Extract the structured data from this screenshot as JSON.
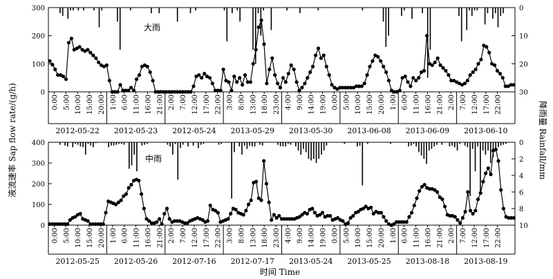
{
  "chart_data": [
    {
      "type": "line",
      "panel_label": "大雨",
      "ylabel_left": "液流速率 Sap flow rate/(g/h)",
      "ylabel_right": "降雨量 Rainfall/mm",
      "ylim_left": [
        0,
        300
      ],
      "yticks_left": [
        0,
        100,
        200,
        300
      ],
      "ylim_right": [
        0,
        30
      ],
      "yticks_right": [
        0,
        10,
        20,
        30
      ],
      "right_axis_inverted": true,
      "rain_series": "bars hanging from top",
      "tick_labels": [
        "0:00",
        "5:00",
        "10:00",
        "15:00",
        "20:00",
        "1:00",
        "6:00",
        "11:00",
        "16:00",
        "21:00",
        "2:00",
        "7:00",
        "12:00",
        "17:00",
        "22:00",
        "3:00",
        "8:00",
        "13:00",
        "18:00",
        "23:00",
        "4:00",
        "9:00",
        "14:00",
        "19:00",
        "0:00",
        "5:00",
        "10:00",
        "15:00",
        "20:00",
        "1:00",
        "6:00",
        "11:00",
        "16:00",
        "21:00",
        "2:00",
        "7:00",
        "12:00",
        "17:00",
        "22:00"
      ],
      "dates": [
        "2012-05-22",
        "2012-05-23",
        "2012-05-24",
        "2013-05-29",
        "2013-05-30",
        "2013-06-08",
        "2013-06-09",
        "2013-06-10"
      ],
      "sap_flow": [
        110,
        97,
        80,
        60,
        60,
        55,
        45,
        175,
        190,
        150,
        155,
        160,
        150,
        145,
        150,
        140,
        130,
        120,
        105,
        95,
        90,
        95,
        40,
        0,
        0,
        0,
        25,
        5,
        5,
        5,
        15,
        5,
        45,
        60,
        90,
        95,
        90,
        70,
        40,
        0,
        0,
        0,
        0,
        0,
        0,
        0,
        0,
        0,
        0,
        0,
        0,
        0,
        0,
        20,
        55,
        60,
        50,
        65,
        55,
        50,
        30,
        5,
        5,
        5,
        80,
        40,
        35,
        5,
        55,
        35,
        50,
        25,
        60,
        35,
        35,
        100,
        150,
        230,
        255,
        170,
        30,
        80,
        120,
        60,
        30,
        15,
        50,
        35,
        65,
        95,
        80,
        35,
        5,
        15,
        30,
        50,
        70,
        90,
        130,
        155,
        120,
        130,
        90,
        60,
        25,
        15,
        10,
        15,
        15,
        15,
        15,
        15,
        15,
        20,
        20,
        20,
        30,
        60,
        90,
        110,
        130,
        125,
        110,
        90,
        70,
        40,
        5,
        0,
        0,
        5,
        50,
        55,
        35,
        20,
        50,
        40,
        50,
        70,
        75,
        200,
        100,
        95,
        105,
        120,
        95,
        85,
        75,
        60,
        40,
        40,
        35,
        30,
        25,
        30,
        40,
        60,
        70,
        80,
        100,
        115,
        165,
        160,
        140,
        100,
        95,
        75,
        65,
        50,
        20,
        20,
        25,
        25
      ],
      "rainfall": [
        0,
        0,
        0,
        0,
        2,
        3,
        0,
        4,
        1,
        1,
        0,
        1,
        0,
        1,
        0,
        0,
        0,
        1,
        0,
        7,
        1,
        0,
        0,
        0,
        0,
        0,
        5,
        15,
        0,
        0,
        0,
        1,
        0,
        0,
        0,
        0,
        0,
        0,
        0,
        2,
        0,
        0,
        2,
        0,
        0,
        0,
        0,
        0,
        0,
        5,
        0,
        0,
        0,
        0,
        2,
        0,
        1,
        0,
        0,
        0,
        0,
        0,
        0,
        0,
        0,
        0,
        0,
        1,
        12,
        0,
        2,
        0,
        1,
        5,
        0,
        0,
        0,
        0,
        15,
        20,
        2,
        10,
        1,
        0,
        0,
        8,
        0,
        0,
        0,
        0,
        0,
        1,
        0,
        0,
        0,
        0,
        2,
        0,
        0,
        0,
        0,
        0,
        0,
        1,
        0,
        0,
        0,
        0,
        0,
        0,
        0,
        0,
        0,
        0,
        0,
        0,
        0,
        0,
        0,
        0,
        1,
        0,
        0,
        0,
        0,
        0,
        0,
        0,
        5,
        14,
        10,
        0,
        0,
        0,
        0,
        3,
        1,
        0,
        0,
        4,
        0,
        0,
        0,
        2,
        0,
        25,
        15,
        0,
        0,
        0,
        0,
        0,
        0,
        0,
        0,
        0,
        0,
        3,
        12,
        0,
        8,
        1,
        3,
        1,
        1,
        0,
        0,
        6,
        2,
        0,
        4,
        2,
        7,
        3,
        2,
        0,
        0,
        0,
        0
      ]
    },
    {
      "type": "line",
      "panel_label": "中雨",
      "ylim_left": [
        0,
        400
      ],
      "yticks_left": [
        0,
        100,
        200,
        300,
        400
      ],
      "ylim_right": [
        0,
        10
      ],
      "yticks_right": [
        0,
        2,
        4,
        6,
        8,
        10
      ],
      "right_axis_inverted": true,
      "rain_series": "bars hanging from top",
      "xlabel": "时间 Time",
      "tick_labels": [
        "0:00",
        "5:00",
        "10:00",
        "15:00",
        "20:00",
        "1:00",
        "6:00",
        "11:00",
        "16:00",
        "21:00",
        "2:00",
        "7:00",
        "12:00",
        "17:00",
        "22:00",
        "3:00",
        "8:00",
        "13:00",
        "18:00",
        "23:00",
        "4:00",
        "9:00",
        "14:00",
        "19:00",
        "0:00",
        "5:00",
        "10:00",
        "15:00",
        "20:00",
        "1:00",
        "6:00",
        "11:00",
        "16:00",
        "21:00",
        "2:00",
        "7:00",
        "12:00",
        "17:00",
        "22:00"
      ],
      "dates": [
        "2012-05-25",
        "2012-05-26",
        "2012-07-16",
        "2012-07-17",
        "2013-05-24",
        "2013-05-25",
        "2013-08-18",
        "2013-08-19"
      ],
      "sap_flow": [
        5,
        5,
        5,
        5,
        5,
        5,
        5,
        5,
        25,
        35,
        40,
        50,
        55,
        30,
        25,
        20,
        5,
        5,
        5,
        5,
        5,
        5,
        60,
        115,
        110,
        105,
        100,
        110,
        120,
        140,
        150,
        180,
        195,
        215,
        220,
        215,
        150,
        80,
        30,
        20,
        10,
        10,
        15,
        30,
        5,
        55,
        80,
        30,
        15,
        20,
        20,
        20,
        15,
        10,
        10,
        20,
        25,
        30,
        35,
        30,
        25,
        15,
        20,
        95,
        75,
        70,
        60,
        15,
        20,
        25,
        30,
        55,
        80,
        75,
        60,
        55,
        50,
        70,
        100,
        120,
        205,
        210,
        130,
        120,
        310,
        200,
        110,
        25,
        50,
        35,
        45,
        30,
        30,
        30,
        30,
        30,
        30,
        35,
        40,
        50,
        60,
        55,
        75,
        80,
        60,
        45,
        50,
        60,
        40,
        45,
        45,
        25,
        30,
        35,
        25,
        20,
        5,
        10,
        35,
        45,
        60,
        65,
        75,
        80,
        90,
        80,
        85,
        55,
        65,
        60,
        60,
        40,
        20,
        5,
        0,
        5,
        15,
        15,
        15,
        15,
        15,
        40,
        60,
        95,
        130,
        165,
        185,
        195,
        180,
        175,
        175,
        170,
        160,
        135,
        125,
        90,
        50,
        45,
        45,
        40,
        25,
        10,
        35,
        65,
        160,
        70,
        55,
        70,
        125,
        155,
        210,
        250,
        275,
        245,
        360,
        365,
        310,
        170,
        80,
        40,
        35,
        35,
        35
      ],
      "rainfall": [
        0,
        0,
        0,
        0,
        0.3,
        0,
        0.4,
        0.5,
        0,
        0.6,
        0.2,
        0.3,
        0.5,
        0.6,
        1.5,
        0.2,
        0.4,
        0.6,
        0.1,
        0,
        0,
        0,
        0,
        0.6,
        0.4,
        0.4,
        0.3,
        0.2,
        0.2,
        0.3,
        0,
        3.2,
        2.8,
        1.5,
        3.5,
        0,
        0.4,
        0.3,
        0.2,
        0,
        0,
        0,
        0,
        0,
        0,
        0,
        0.3,
        0.5,
        1.5,
        0.2,
        4.5,
        0.7,
        0.3,
        0,
        0.5,
        0,
        0.4,
        0,
        0.7,
        0.3,
        0.2,
        0,
        0,
        0,
        0,
        0,
        0.3,
        0.2,
        0,
        0,
        0,
        6.8,
        1.2,
        0,
        0.5,
        1.5,
        0.4,
        0.8,
        0.4,
        0.5,
        0.5,
        0,
        0.3,
        0.4,
        0,
        0,
        0,
        0,
        0,
        0.3,
        0.5,
        0.5,
        0.5,
        0.2,
        0.3,
        0,
        0.5,
        1.0,
        1.5,
        0.8,
        1.2,
        2.0,
        2.2,
        2.0,
        2.5,
        2.0,
        1.5,
        1.0,
        0.4,
        0,
        0,
        0,
        0,
        0,
        0,
        0.2,
        0,
        0,
        0,
        0,
        0.5,
        0.4,
        5.2,
        0,
        0.2,
        0,
        0,
        0,
        0,
        0,
        0,
        0,
        0,
        0.2,
        0,
        0,
        0,
        0,
        0,
        0,
        0.5,
        0.4,
        0.2,
        0.5,
        1.2,
        1.6,
        2.0,
        2.6,
        1.0,
        0.8,
        0.5,
        0.3,
        0,
        0.3,
        0,
        0,
        0.5,
        0.4,
        0.6,
        1.0,
        0.2,
        0,
        0.4,
        0.6,
        6.5,
        0.8,
        3.5,
        0.5,
        6.0,
        1.0,
        1.5,
        1.0,
        2.5,
        1.8,
        1.0,
        0.6,
        0.4,
        0.3,
        0.2,
        0,
        0,
        0
      ]
    }
  ]
}
